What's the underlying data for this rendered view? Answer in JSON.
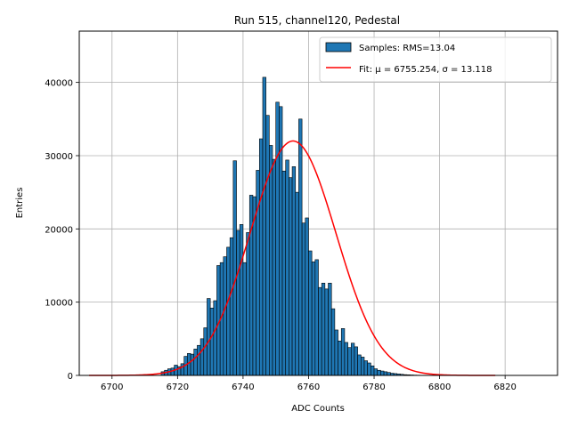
{
  "chart_data": {
    "type": "bar",
    "title": "Run 515, channel120, Pedestal",
    "xlabel": "ADC Counts",
    "ylabel": "Entries",
    "xlim": [
      6690,
      6836
    ],
    "ylim": [
      0,
      47000
    ],
    "xticks": [
      6700,
      6720,
      6740,
      6760,
      6780,
      6800,
      6820
    ],
    "yticks": [
      0,
      10000,
      20000,
      30000,
      40000
    ],
    "grid": true,
    "legend_position": "top-right",
    "colors": {
      "bars": "#1f77b4",
      "bar_edge": "#000000",
      "fit": "#ff0000",
      "grid": "#b0b0b0"
    },
    "histogram": {
      "name": "Samples: RMS=13.04",
      "bin_start": 6715,
      "bin_width": 1,
      "values": [
        500,
        700,
        900,
        1000,
        1400,
        1200,
        1600,
        2600,
        3000,
        2900,
        3600,
        4100,
        5000,
        6500,
        10500,
        9200,
        10200,
        15000,
        15400,
        16200,
        17500,
        18800,
        29300,
        19800,
        20600,
        15400,
        19500,
        24600,
        24400,
        28000,
        32300,
        40700,
        35500,
        31400,
        29500,
        37300,
        36700,
        27900,
        29400,
        27000,
        28500,
        25000,
        35000,
        20800,
        21500,
        17000,
        15500,
        15800,
        12000,
        12600,
        11800,
        12600,
        9100,
        6200,
        4700,
        6400,
        4500,
        3800,
        4400,
        3900,
        2800,
        2500,
        2000,
        1700,
        1300,
        900,
        700,
        600,
        500,
        400,
        300,
        250,
        200,
        150,
        100,
        80,
        60,
        40,
        30,
        20
      ]
    },
    "fit": {
      "name": "Fit: μ = 6755.254, σ = 13.118",
      "mu": 6755.254,
      "sigma": 13.118,
      "amplitude": 32000,
      "x_range": [
        6693,
        6817
      ]
    }
  }
}
